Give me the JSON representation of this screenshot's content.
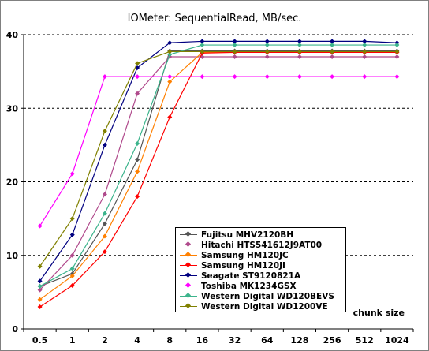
{
  "title": "IOMeter: SequentialRead, MB/sec.",
  "chart_data": {
    "type": "line",
    "title": "IOMeter: SequentialRead, MB/sec.",
    "xlabel": "chunk size",
    "ylabel": "",
    "categories": [
      "0.5",
      "1",
      "2",
      "4",
      "8",
      "16",
      "32",
      "64",
      "128",
      "256",
      "512",
      "1024"
    ],
    "ylim": [
      0,
      40
    ],
    "yticks": [
      0,
      10,
      20,
      30,
      40
    ],
    "grid": "horizontal dashed",
    "legend_position": "bottom-right",
    "series": [
      {
        "name": "Fujitsu MHV2120BH",
        "color": "#555555",
        "values": [
          5.8,
          7.5,
          14.3,
          23.0,
          37.8,
          37.8,
          37.8,
          37.8,
          37.8,
          37.8,
          37.8,
          37.8
        ]
      },
      {
        "name": "Hitachi HTS541612J9AT00",
        "color": "#b04a8c",
        "values": [
          5.3,
          10.0,
          18.3,
          32.0,
          37.0,
          37.0,
          37.0,
          37.0,
          37.0,
          37.0,
          37.0,
          37.0
        ]
      },
      {
        "name": "Samsung HM120JC",
        "color": "#ff8000",
        "values": [
          4.0,
          7.2,
          12.6,
          21.4,
          33.6,
          37.6,
          37.6,
          37.6,
          37.6,
          37.6,
          37.6,
          37.6
        ]
      },
      {
        "name": "Samsung HM120JI",
        "color": "#ff0000",
        "values": [
          3.0,
          5.9,
          10.5,
          18.0,
          28.8,
          37.5,
          37.6,
          37.6,
          37.6,
          37.6,
          37.6,
          37.6
        ]
      },
      {
        "name": "Seagate ST9120821A",
        "color": "#000080",
        "values": [
          6.5,
          12.8,
          25.0,
          35.5,
          38.9,
          39.1,
          39.1,
          39.1,
          39.1,
          39.1,
          39.1,
          38.9
        ]
      },
      {
        "name": "Toshiba MK1234GSX",
        "color": "#ff00ff",
        "values": [
          14.0,
          21.1,
          34.3,
          34.3,
          34.3,
          34.3,
          34.3,
          34.3,
          34.3,
          34.3,
          34.3,
          34.3
        ]
      },
      {
        "name": "Western Digital WD120BEVS",
        "color": "#3cb48c",
        "values": [
          5.8,
          8.2,
          15.7,
          25.2,
          37.3,
          38.6,
          38.6,
          38.6,
          38.6,
          38.6,
          38.6,
          38.6
        ]
      },
      {
        "name": "Western Digital WD1200VE",
        "color": "#808000",
        "values": [
          8.5,
          15.0,
          26.9,
          36.1,
          37.7,
          37.7,
          37.7,
          37.7,
          37.7,
          37.7,
          37.7,
          37.7
        ]
      }
    ]
  }
}
